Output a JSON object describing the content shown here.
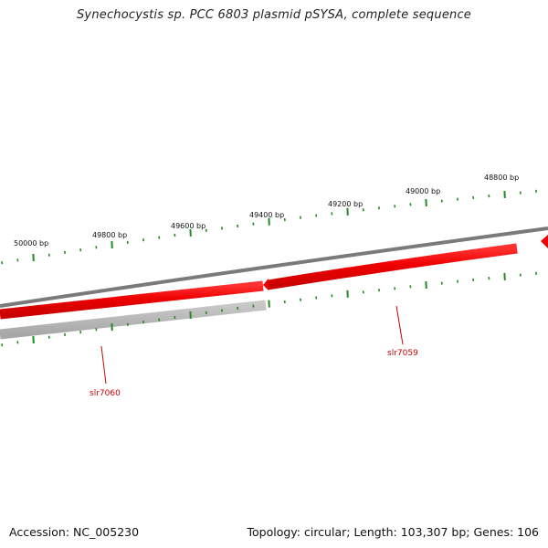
{
  "title": "Synechocystis sp. PCC 6803 plasmid pSYSA, complete sequence",
  "footer": {
    "accession": "Accession: NC_005230",
    "summary": "Topology: circular; Length: 103,307 bp; Genes: 106"
  },
  "colors": {
    "backbone": "#808080",
    "forward_gene": "#ee0000",
    "reverse_gene": "#b4b4b4",
    "tick": "#228b22",
    "gene_label": "#cc0000"
  },
  "ticks_outer": [
    "50000 bp",
    "49800 bp",
    "49600 bp",
    "49400 bp",
    "49200 bp",
    "49000 bp",
    "48800 bp"
  ],
  "genes": [
    {
      "label": "slr7060",
      "strand": "reverse"
    },
    {
      "label": "slr7059",
      "strand": "forward"
    }
  ]
}
